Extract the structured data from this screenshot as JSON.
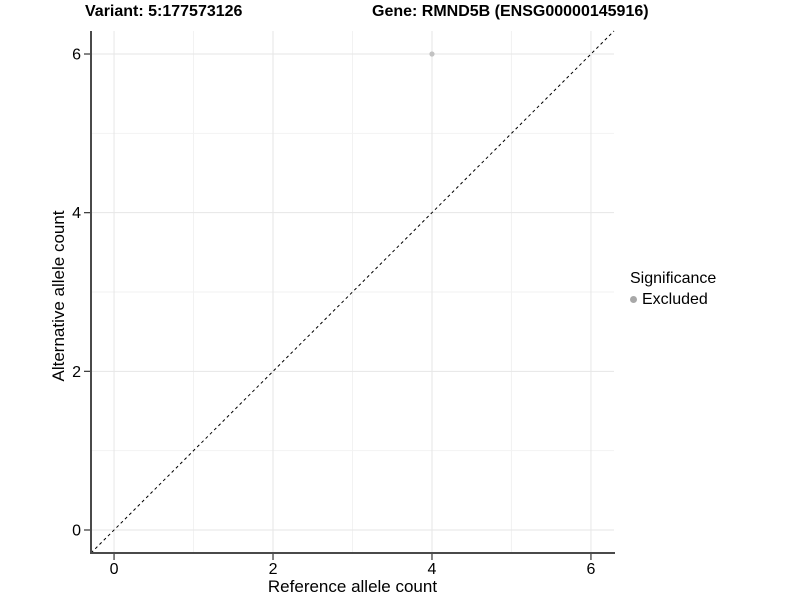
{
  "chart_data": {
    "type": "scatter",
    "titles": {
      "left": "Variant: 5:177573126",
      "right": "Gene: RMND5B (ENSG00000145916)"
    },
    "xlabel": "Reference allele count",
    "ylabel": "Alternative allele count",
    "xlim": [
      -0.29,
      6.29
    ],
    "ylim": [
      -0.29,
      6.29
    ],
    "xticks": [
      0,
      2,
      4,
      6
    ],
    "yticks": [
      0,
      2,
      4,
      6
    ],
    "xticks_minor": [
      1,
      3,
      5
    ],
    "yticks_minor": [
      1,
      3,
      5
    ],
    "grid": "major and minor gridlines, light gray on white panel",
    "identity_line": {
      "style": "dashed",
      "color": "#000000",
      "note": "y = x reference line spanning panel corner to corner"
    },
    "points": [
      {
        "x": 4,
        "y": 6,
        "series": "Excluded",
        "color": "#c2c2c2",
        "radius": 2.6
      }
    ],
    "legend": {
      "title": "Significance",
      "position": "right",
      "items": [
        {
          "label": "Excluded",
          "color": "#a8a8a8",
          "marker": "circle"
        }
      ]
    },
    "colors": {
      "background": "#ffffff",
      "grid_major": "#e6e6e6",
      "grid_minor": "#f2f2f2",
      "axis": "#4a4a4a",
      "tick": "#333333",
      "text": "#000000"
    }
  }
}
